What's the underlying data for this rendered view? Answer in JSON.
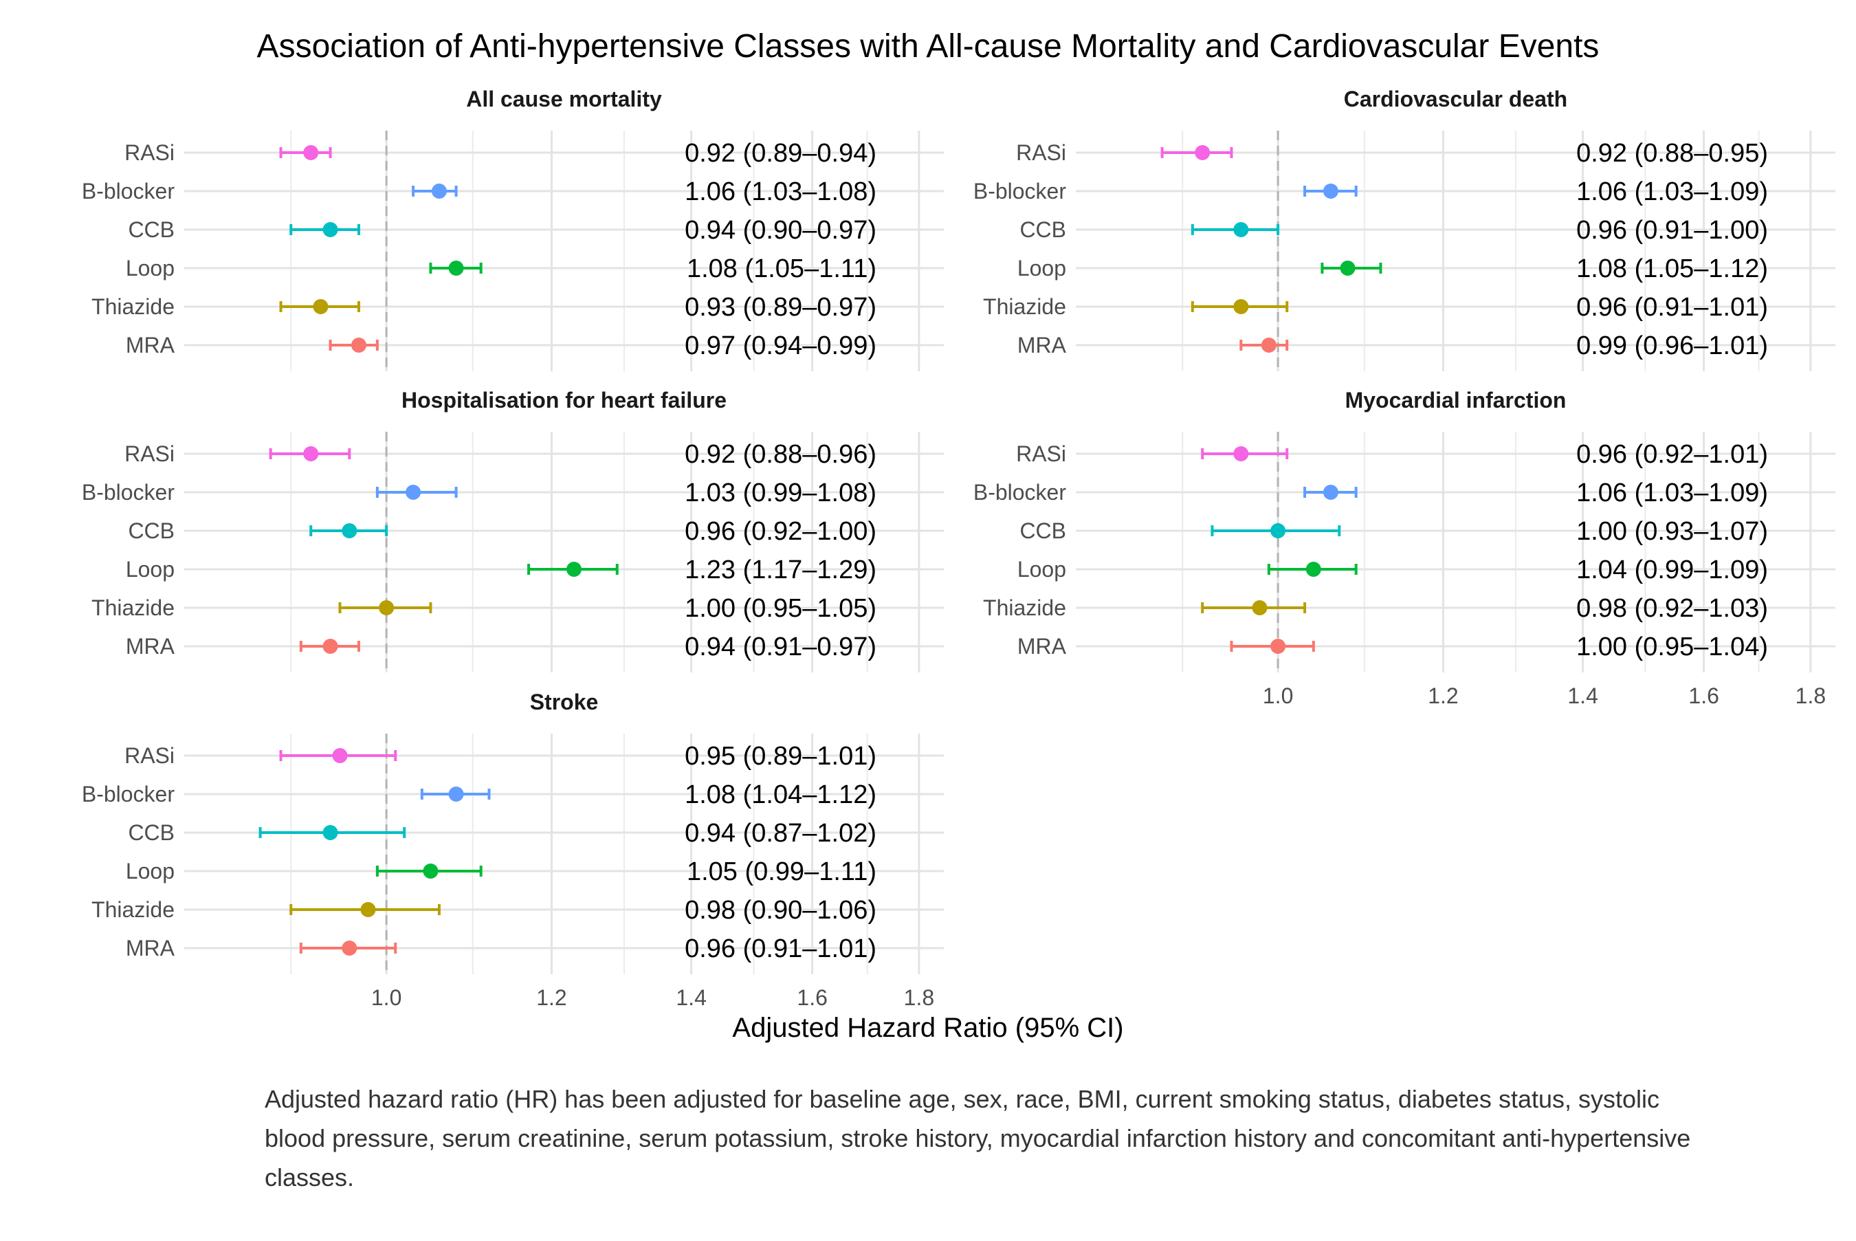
{
  "chart_data": {
    "type": "forest",
    "title": "Association of Anti-hypertensive Classes with All-cause Mortality and Cardiovascular Events",
    "xlabel": "Adjusted Hazard Ratio (95% CI)",
    "caption": "Adjusted hazard ratio (HR) has been adjusted for baseline age, sex, race, BMI, current smoking status, diabetes status, systolic blood pressure, serum creatinine, serum potassium, stroke history, myocardial infarction history and concomitant anti-hypertensive classes.",
    "xscale": "log",
    "xlim": [
      0.8,
      1.85
    ],
    "xticks": [
      1.0,
      1.2,
      1.4,
      1.6,
      1.8
    ],
    "xtick_labels": [
      "1.0",
      "1.2",
      "1.4",
      "1.6",
      "1.8"
    ],
    "reference_line": 1.0,
    "grid": true,
    "drug_classes": [
      "RASi",
      "B-blocker",
      "CCB",
      "Loop",
      "Thiazide",
      "MRA"
    ],
    "colors": {
      "RASi": "#F564E3",
      "B-blocker": "#619CFF",
      "CCB": "#00BFC4",
      "Loop": "#00BA38",
      "Thiazide": "#B79F00",
      "MRA": "#F8766D"
    },
    "panels": [
      {
        "title": "All cause mortality",
        "rows": [
          {
            "label": "RASi",
            "hr": 0.92,
            "lo": 0.89,
            "hi": 0.94,
            "text": "0.92 (0.89–0.94)"
          },
          {
            "label": "B-blocker",
            "hr": 1.06,
            "lo": 1.03,
            "hi": 1.08,
            "text": "1.06 (1.03–1.08)"
          },
          {
            "label": "CCB",
            "hr": 0.94,
            "lo": 0.9,
            "hi": 0.97,
            "text": "0.94 (0.90–0.97)"
          },
          {
            "label": "Loop",
            "hr": 1.08,
            "lo": 1.05,
            "hi": 1.11,
            "text": "1.08 (1.05–1.11)"
          },
          {
            "label": "Thiazide",
            "hr": 0.93,
            "lo": 0.89,
            "hi": 0.97,
            "text": "0.93 (0.89–0.97)"
          },
          {
            "label": "MRA",
            "hr": 0.97,
            "lo": 0.94,
            "hi": 0.99,
            "text": "0.97 (0.94–0.99)"
          }
        ]
      },
      {
        "title": "Cardiovascular death",
        "rows": [
          {
            "label": "RASi",
            "hr": 0.92,
            "lo": 0.88,
            "hi": 0.95,
            "text": "0.92 (0.88–0.95)"
          },
          {
            "label": "B-blocker",
            "hr": 1.06,
            "lo": 1.03,
            "hi": 1.09,
            "text": "1.06 (1.03–1.09)"
          },
          {
            "label": "CCB",
            "hr": 0.96,
            "lo": 0.91,
            "hi": 1.0,
            "text": "0.96 (0.91–1.00)"
          },
          {
            "label": "Loop",
            "hr": 1.08,
            "lo": 1.05,
            "hi": 1.12,
            "text": "1.08 (1.05–1.12)"
          },
          {
            "label": "Thiazide",
            "hr": 0.96,
            "lo": 0.91,
            "hi": 1.01,
            "text": "0.96 (0.91–1.01)"
          },
          {
            "label": "MRA",
            "hr": 0.99,
            "lo": 0.96,
            "hi": 1.01,
            "text": "0.99 (0.96–1.01)"
          }
        ]
      },
      {
        "title": "Hospitalisation for heart failure",
        "rows": [
          {
            "label": "RASi",
            "hr": 0.92,
            "lo": 0.88,
            "hi": 0.96,
            "text": "0.92 (0.88–0.96)"
          },
          {
            "label": "B-blocker",
            "hr": 1.03,
            "lo": 0.99,
            "hi": 1.08,
            "text": "1.03 (0.99–1.08)"
          },
          {
            "label": "CCB",
            "hr": 0.96,
            "lo": 0.92,
            "hi": 1.0,
            "text": "0.96 (0.92–1.00)"
          },
          {
            "label": "Loop",
            "hr": 1.23,
            "lo": 1.17,
            "hi": 1.29,
            "text": "1.23 (1.17–1.29)"
          },
          {
            "label": "Thiazide",
            "hr": 1.0,
            "lo": 0.95,
            "hi": 1.05,
            "text": "1.00 (0.95–1.05)"
          },
          {
            "label": "MRA",
            "hr": 0.94,
            "lo": 0.91,
            "hi": 0.97,
            "text": "0.94 (0.91–0.97)"
          }
        ]
      },
      {
        "title": "Myocardial infarction",
        "rows": [
          {
            "label": "RASi",
            "hr": 0.96,
            "lo": 0.92,
            "hi": 1.01,
            "text": "0.96 (0.92–1.01)"
          },
          {
            "label": "B-blocker",
            "hr": 1.06,
            "lo": 1.03,
            "hi": 1.09,
            "text": "1.06 (1.03–1.09)"
          },
          {
            "label": "CCB",
            "hr": 1.0,
            "lo": 0.93,
            "hi": 1.07,
            "text": "1.00 (0.93–1.07)"
          },
          {
            "label": "Loop",
            "hr": 1.04,
            "lo": 0.99,
            "hi": 1.09,
            "text": "1.04 (0.99–1.09)"
          },
          {
            "label": "Thiazide",
            "hr": 0.98,
            "lo": 0.92,
            "hi": 1.03,
            "text": "0.98 (0.92–1.03)"
          },
          {
            "label": "MRA",
            "hr": 1.0,
            "lo": 0.95,
            "hi": 1.04,
            "text": "1.00 (0.95–1.04)"
          }
        ]
      },
      {
        "title": "Stroke",
        "rows": [
          {
            "label": "RASi",
            "hr": 0.95,
            "lo": 0.89,
            "hi": 1.01,
            "text": "0.95 (0.89–1.01)"
          },
          {
            "label": "B-blocker",
            "hr": 1.08,
            "lo": 1.04,
            "hi": 1.12,
            "text": "1.08 (1.04–1.12)"
          },
          {
            "label": "CCB",
            "hr": 0.94,
            "lo": 0.87,
            "hi": 1.02,
            "text": "0.94 (0.87–1.02)"
          },
          {
            "label": "Loop",
            "hr": 1.05,
            "lo": 0.99,
            "hi": 1.11,
            "text": "1.05 (0.99–1.11)"
          },
          {
            "label": "Thiazide",
            "hr": 0.98,
            "lo": 0.9,
            "hi": 1.06,
            "text": "0.98 (0.90–1.06)"
          },
          {
            "label": "MRA",
            "hr": 0.96,
            "lo": 0.91,
            "hi": 1.01,
            "text": "0.96 (0.91–1.01)"
          }
        ]
      }
    ]
  }
}
